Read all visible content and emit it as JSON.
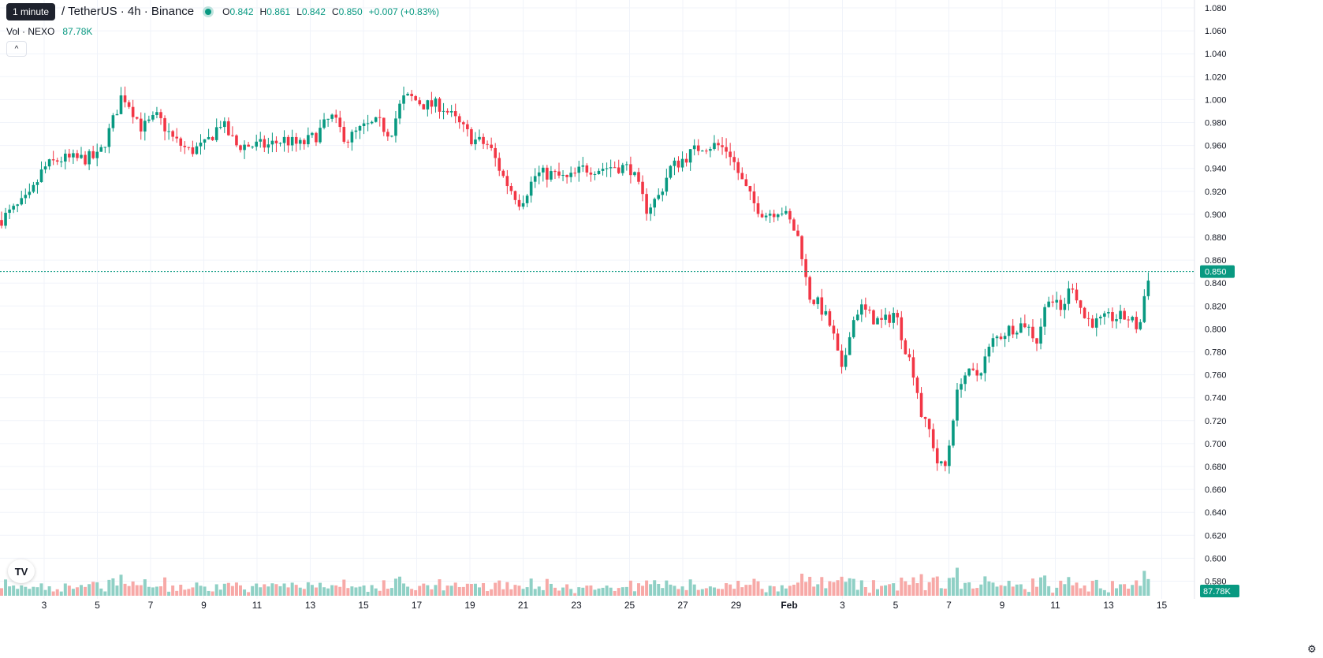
{
  "header": {
    "tooltip": "1 minute",
    "symbol_title": "/ TetherUS · 4h · Binance",
    "ohlc": [
      {
        "key": "O",
        "value": "0.842"
      },
      {
        "key": "H",
        "value": "0.861"
      },
      {
        "key": "L",
        "value": "0.842"
      },
      {
        "key": "C",
        "value": "0.850"
      }
    ],
    "change": "+0.007 (+0.83%)"
  },
  "volume_legend": {
    "label": "Vol · NEXO",
    "value": "87.78K"
  },
  "collapse_glyph": "^",
  "logo_text": "TV",
  "settings_icon": "gear-icon",
  "colors": {
    "up": "#089981",
    "down": "#f23645",
    "up_vol": "#8fd0c5",
    "down_vol": "#f7a9a7",
    "grid": "#f0f3fa"
  },
  "chart_data": {
    "type": "candlestick",
    "y_ticks": [
      "1.080",
      "1.060",
      "1.040",
      "1.020",
      "1.000",
      "0.980",
      "0.960",
      "0.940",
      "0.920",
      "0.900",
      "0.880",
      "0.860",
      "0.840",
      "0.820",
      "0.800",
      "0.780",
      "0.760",
      "0.740",
      "0.720",
      "0.700",
      "0.680",
      "0.660",
      "0.640",
      "0.620",
      "0.600",
      "0.580"
    ],
    "ylim": [
      0.575,
      1.085
    ],
    "x_ticks": [
      "3",
      "5",
      "7",
      "9",
      "11",
      "13",
      "15",
      "17",
      "19",
      "21",
      "23",
      "25",
      "27",
      "29",
      "Feb",
      "3",
      "5",
      "7",
      "9",
      "11",
      "13",
      "15"
    ],
    "current_price": "0.850",
    "current_volume": "87.78K",
    "anchors": [
      [
        0,
        0.895
      ],
      [
        20,
        0.905
      ],
      [
        38,
        0.915
      ],
      [
        55,
        0.94
      ],
      [
        75,
        0.948
      ],
      [
        100,
        0.948
      ],
      [
        125,
        0.95
      ],
      [
        140,
        0.975
      ],
      [
        155,
        1.005
      ],
      [
        165,
        0.995
      ],
      [
        180,
        0.975
      ],
      [
        200,
        0.985
      ],
      [
        220,
        0.965
      ],
      [
        240,
        0.955
      ],
      [
        260,
        0.96
      ],
      [
        280,
        0.98
      ],
      [
        300,
        0.96
      ],
      [
        320,
        0.96
      ],
      [
        340,
        0.96
      ],
      [
        360,
        0.965
      ],
      [
        380,
        0.96
      ],
      [
        400,
        0.968
      ],
      [
        420,
        0.985
      ],
      [
        440,
        0.965
      ],
      [
        460,
        0.975
      ],
      [
        480,
        0.98
      ],
      [
        495,
        0.97
      ],
      [
        510,
        1.0
      ],
      [
        520,
        1.002
      ],
      [
        540,
        0.995
      ],
      [
        560,
        0.995
      ],
      [
        580,
        0.98
      ],
      [
        600,
        0.965
      ],
      [
        620,
        0.96
      ],
      [
        640,
        0.93
      ],
      [
        660,
        0.91
      ],
      [
        680,
        0.935
      ],
      [
        700,
        0.935
      ],
      [
        720,
        0.93
      ],
      [
        740,
        0.94
      ],
      [
        760,
        0.94
      ],
      [
        780,
        0.942
      ],
      [
        800,
        0.94
      ],
      [
        820,
        0.905
      ],
      [
        835,
        0.915
      ],
      [
        850,
        0.94
      ],
      [
        870,
        0.95
      ],
      [
        890,
        0.96
      ],
      [
        910,
        0.96
      ],
      [
        925,
        0.955
      ],
      [
        940,
        0.93
      ],
      [
        955,
        0.91
      ],
      [
        970,
        0.9
      ],
      [
        990,
        0.905
      ],
      [
        1005,
        0.89
      ],
      [
        1015,
        0.875
      ],
      [
        1025,
        0.83
      ],
      [
        1040,
        0.82
      ],
      [
        1055,
        0.8
      ],
      [
        1068,
        0.76
      ],
      [
        1078,
        0.8
      ],
      [
        1090,
        0.82
      ],
      [
        1105,
        0.81
      ],
      [
        1120,
        0.805
      ],
      [
        1135,
        0.815
      ],
      [
        1150,
        0.78
      ],
      [
        1160,
        0.76
      ],
      [
        1170,
        0.72
      ],
      [
        1180,
        0.71
      ],
      [
        1190,
        0.68
      ],
      [
        1200,
        0.68
      ],
      [
        1210,
        0.73
      ],
      [
        1220,
        0.76
      ],
      [
        1240,
        0.76
      ],
      [
        1260,
        0.79
      ],
      [
        1280,
        0.8
      ],
      [
        1300,
        0.805
      ],
      [
        1315,
        0.79
      ],
      [
        1330,
        0.83
      ],
      [
        1345,
        0.815
      ],
      [
        1360,
        0.84
      ],
      [
        1375,
        0.81
      ],
      [
        1390,
        0.805
      ],
      [
        1410,
        0.81
      ],
      [
        1430,
        0.81
      ],
      [
        1445,
        0.8
      ],
      [
        1455,
        0.845
      ],
      [
        1460,
        0.85
      ]
    ]
  }
}
